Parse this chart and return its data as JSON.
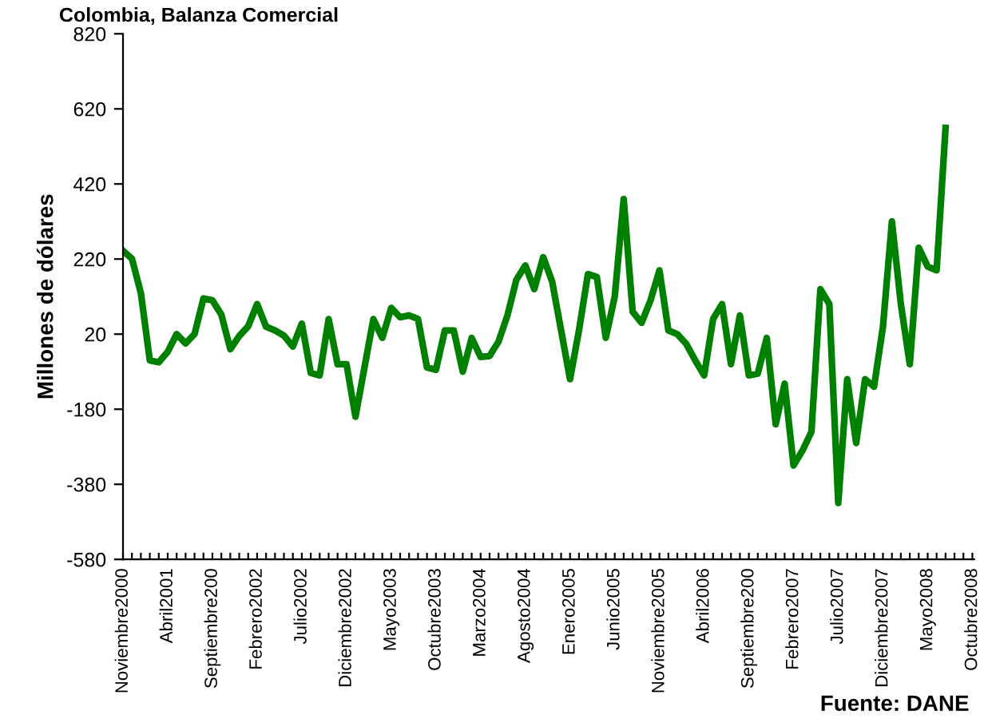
{
  "chart_data": {
    "type": "line",
    "title": "Colombia, Balanza Comercial",
    "ylabel": "Millones de dólares",
    "categories": [
      "Noviembre2000",
      null,
      null,
      null,
      null,
      "Abril2001",
      null,
      null,
      null,
      null,
      "Septiembre200",
      null,
      null,
      null,
      null,
      "Febrero2002",
      null,
      null,
      null,
      null,
      "Julio2002",
      null,
      null,
      null,
      null,
      "Diciembre2002",
      null,
      null,
      null,
      null,
      "Mayo2003",
      null,
      null,
      null,
      null,
      "Octubre2003",
      null,
      null,
      null,
      null,
      "Marzo2004",
      null,
      null,
      null,
      null,
      "Agosto2004",
      null,
      null,
      null,
      null,
      "Enero2005",
      null,
      null,
      null,
      null,
      "Junio2005",
      null,
      null,
      null,
      null,
      "Noviembre2005",
      null,
      null,
      null,
      null,
      "Abril2006",
      null,
      null,
      null,
      null,
      "Septiembre200",
      null,
      null,
      null,
      null,
      "Febrero2007",
      null,
      null,
      null,
      null,
      "Julio2007",
      null,
      null,
      null,
      null,
      "Diciembre2007",
      null,
      null,
      null,
      null,
      "Mayo2008",
      null,
      null,
      null,
      null,
      "Octubre2008"
    ],
    "series": [
      {
        "color": "#008000",
        "values": [
          242,
          221,
          129,
          -50,
          -55,
          -27,
          20,
          -5,
          20,
          115,
          110,
          72,
          -20,
          15,
          41,
          100,
          40,
          30,
          16,
          -13,
          48,
          -83,
          -90,
          60,
          -60,
          -60,
          -200,
          -70,
          60,
          10,
          90,
          65,
          70,
          60,
          -69,
          -75,
          30,
          30,
          -80,
          10,
          -41,
          -38,
          0,
          70,
          165,
          203,
          140,
          225,
          160,
          30,
          -100,
          30,
          180,
          172,
          10,
          120,
          380,
          80,
          50,
          110,
          190,
          30,
          20,
          -6,
          -50,
          -90,
          60,
          100,
          -60,
          70,
          -90,
          -85,
          10,
          -220,
          -112,
          -330,
          -290,
          -240,
          140,
          100,
          -430,
          -100,
          -270,
          -100,
          -120,
          40,
          320,
          100,
          -60,
          250,
          200,
          190,
          569,
          null,
          null,
          null
        ]
      }
    ],
    "ylim": [
      -580,
      820
    ],
    "yticks": [
      -580,
      -380,
      -180,
      20,
      220,
      420,
      620,
      820
    ],
    "grid": false,
    "legend": false,
    "marker": "none",
    "line_style": "solid",
    "annotations": [
      "Fuente: DANE"
    ]
  }
}
